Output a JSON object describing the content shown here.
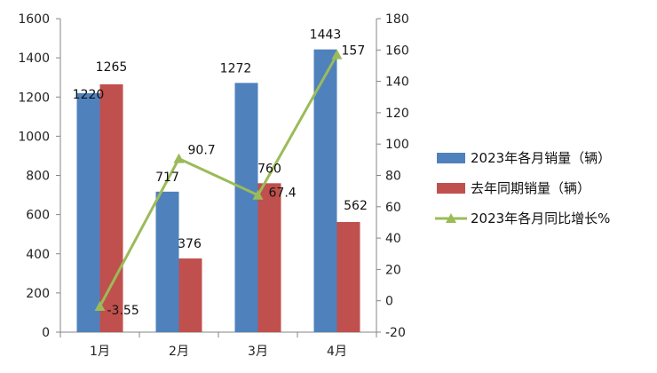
{
  "chart_data": {
    "type": "bar",
    "categories": [
      "1月",
      "2月",
      "3月",
      "4月"
    ],
    "series": [
      {
        "name": "2023年各月销量（辆）",
        "kind": "bar",
        "axis": "left",
        "color": "#4f81bd",
        "values": [
          1220,
          717,
          1272,
          1443
        ]
      },
      {
        "name": "去年同期销量（辆）",
        "kind": "bar",
        "axis": "left",
        "color": "#c0504d",
        "values": [
          1265,
          376,
          760,
          562
        ]
      },
      {
        "name": "2023年各月同比增长%",
        "kind": "line",
        "axis": "right",
        "color": "#9bbb59",
        "marker": "triangle",
        "values": [
          -3.55,
          90.7,
          67.4,
          157
        ]
      }
    ],
    "y_left": {
      "ylim": [
        0,
        1600
      ],
      "ticks": [
        "0",
        "200",
        "400",
        "600",
        "800",
        "1000",
        "1200",
        "1400",
        "1600"
      ]
    },
    "y_right": {
      "ylim": [
        -20,
        180
      ],
      "ticks": [
        "-20",
        "0",
        "20",
        "40",
        "60",
        "80",
        "100",
        "120",
        "140",
        "160",
        "180"
      ]
    },
    "data_labels": true,
    "grid": false,
    "legend_position": "right"
  }
}
